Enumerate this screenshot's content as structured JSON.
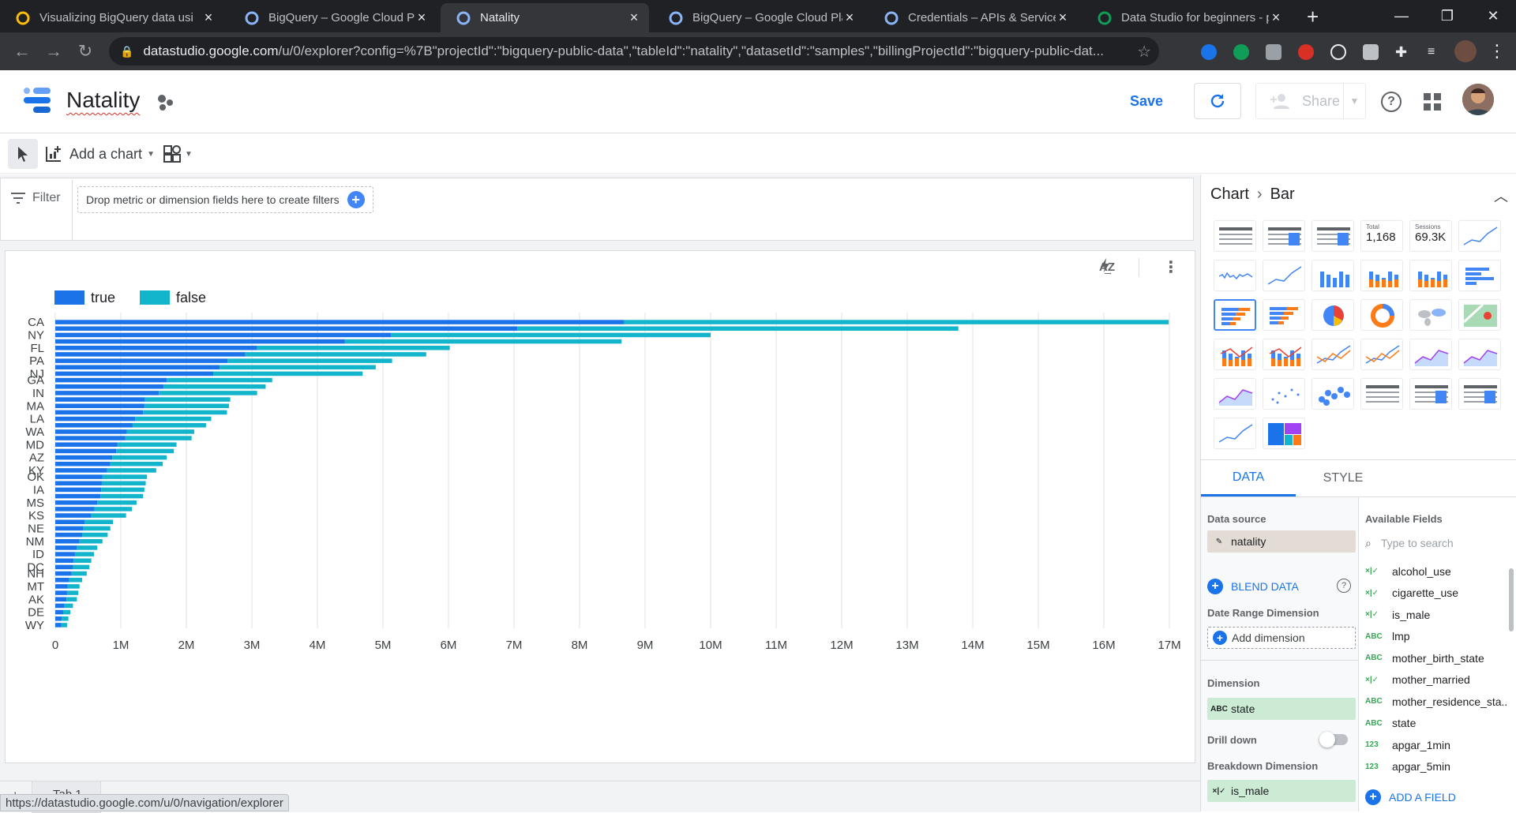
{
  "browser": {
    "tabs": [
      {
        "title": "Visualizing BigQuery data usi",
        "favicon": "data-studio-logo",
        "color": "#fbbc04"
      },
      {
        "title": "BigQuery – Google Cloud Pla",
        "favicon": "bigquery-logo",
        "color": "#8ab4f8"
      },
      {
        "title": "Natality",
        "favicon": "data-studio-logo",
        "color": "#8ab4f8",
        "active": true
      },
      {
        "title": "BigQuery – Google Cloud Pla",
        "favicon": "bigquery-logo",
        "color": "#8ab4f8"
      },
      {
        "title": "Credentials – APIs & Services",
        "favicon": "api-logo",
        "color": "#8ab4f8"
      },
      {
        "title": "Data Studio for beginners - p",
        "favicon": "sheets-logo",
        "color": "#0f9d58"
      }
    ],
    "url_host": "datastudio.google.com",
    "url_path": "/u/0/explorer?config=%7B\"projectId\":\"bigquery-public-data\",\"tableId\":\"natality\",\"datasetId\":\"samples\",\"billingProjectId\":\"bigquery-public-dat...",
    "status_url": "https://datastudio.google.com/u/0/navigation/explorer"
  },
  "header": {
    "title": "Natality",
    "save_label": "Save",
    "share_label": "Share"
  },
  "toolbar": {
    "add_chart_label": "Add a chart"
  },
  "filter": {
    "label": "Filter",
    "hint": "Drop metric or dimension fields here to create filters"
  },
  "page_tab": "Tab 1",
  "chart_data": {
    "type": "bar",
    "orientation": "horizontal",
    "stacked": true,
    "legend_position": "top-left",
    "grid": true,
    "xlim": [
      0,
      17000000
    ],
    "x_ticks": [
      "0",
      "1M",
      "2M",
      "3M",
      "4M",
      "5M",
      "6M",
      "7M",
      "8M",
      "9M",
      "10M",
      "11M",
      "12M",
      "13M",
      "14M",
      "15M",
      "16M",
      "17M"
    ],
    "labeled_categories": [
      "CA",
      "NY",
      "FL",
      "PA",
      "NJ",
      "GA",
      "IN",
      "MA",
      "LA",
      "WA",
      "MD",
      "AZ",
      "KY",
      "OK",
      "IA",
      "MS",
      "KS",
      "NE",
      "NM",
      "ID",
      "DC",
      "NH",
      "MT",
      "AK",
      "DE",
      "WY"
    ],
    "series": [
      {
        "name": "true",
        "color": "#1a73e8",
        "values": [
          8680000,
          7050000,
          5120000,
          4420000,
          3080000,
          2900000,
          2630000,
          2510000,
          2410000,
          1700000,
          1650000,
          1580000,
          1370000,
          1360000,
          1340000,
          1220000,
          1180000,
          1090000,
          1070000,
          950000,
          930000,
          870000,
          840000,
          790000,
          720000,
          710000,
          700000,
          690000,
          640000,
          600000,
          550000,
          450000,
          430000,
          410000,
          370000,
          330000,
          300000,
          280000,
          270000,
          250000,
          210000,
          190000,
          180000,
          170000,
          140000,
          120000,
          100000,
          90000
        ]
      },
      {
        "name": "false",
        "color": "#12b5cb",
        "values": [
          8310000,
          6730000,
          4880000,
          4220000,
          2940000,
          2760000,
          2510000,
          2380000,
          2280000,
          1610000,
          1560000,
          1500000,
          1300000,
          1290000,
          1280000,
          1160000,
          1120000,
          1030000,
          1010000,
          900000,
          880000,
          830000,
          800000,
          750000,
          680000,
          670000,
          660000,
          650000,
          600000,
          570000,
          530000,
          430000,
          410000,
          390000,
          350000,
          310000,
          290000,
          270000,
          250000,
          230000,
          200000,
          180000,
          170000,
          160000,
          130000,
          110000,
          100000,
          90000
        ]
      }
    ]
  },
  "panel": {
    "breadcrumb_parent": "Chart",
    "breadcrumb_current": "Bar",
    "scorecard_total_label": "Total",
    "scorecard_total_value": "1,168",
    "scorecard_sessions_label": "Sessions",
    "scorecard_sessions_value": "69.3K",
    "tab_data": "DATA",
    "tab_style": "STYLE",
    "data_source_label": "Data source",
    "data_source_value": "natality",
    "blend_label": "BLEND DATA",
    "date_range_label": "Date Range Dimension",
    "add_dimension_label": "Add dimension",
    "dimension_label": "Dimension",
    "dimension_value": "state",
    "drill_down_label": "Drill down",
    "breakdown_label": "Breakdown Dimension",
    "breakdown_value": "is_male",
    "available_fields_label": "Available Fields",
    "search_placeholder": "Type to search",
    "add_field_label": "ADD A FIELD",
    "fields": [
      {
        "type": "×|✓",
        "name": "alcohol_use"
      },
      {
        "type": "×|✓",
        "name": "cigarette_use"
      },
      {
        "type": "×|✓",
        "name": "is_male"
      },
      {
        "type": "ABC",
        "name": "lmp"
      },
      {
        "type": "ABC",
        "name": "mother_birth_state"
      },
      {
        "type": "×|✓",
        "name": "mother_married"
      },
      {
        "type": "ABC",
        "name": "mother_residence_sta..."
      },
      {
        "type": "ABC",
        "name": "state"
      },
      {
        "type": "123",
        "name": "apgar_1min"
      },
      {
        "type": "123",
        "name": "apgar_5min"
      }
    ]
  }
}
